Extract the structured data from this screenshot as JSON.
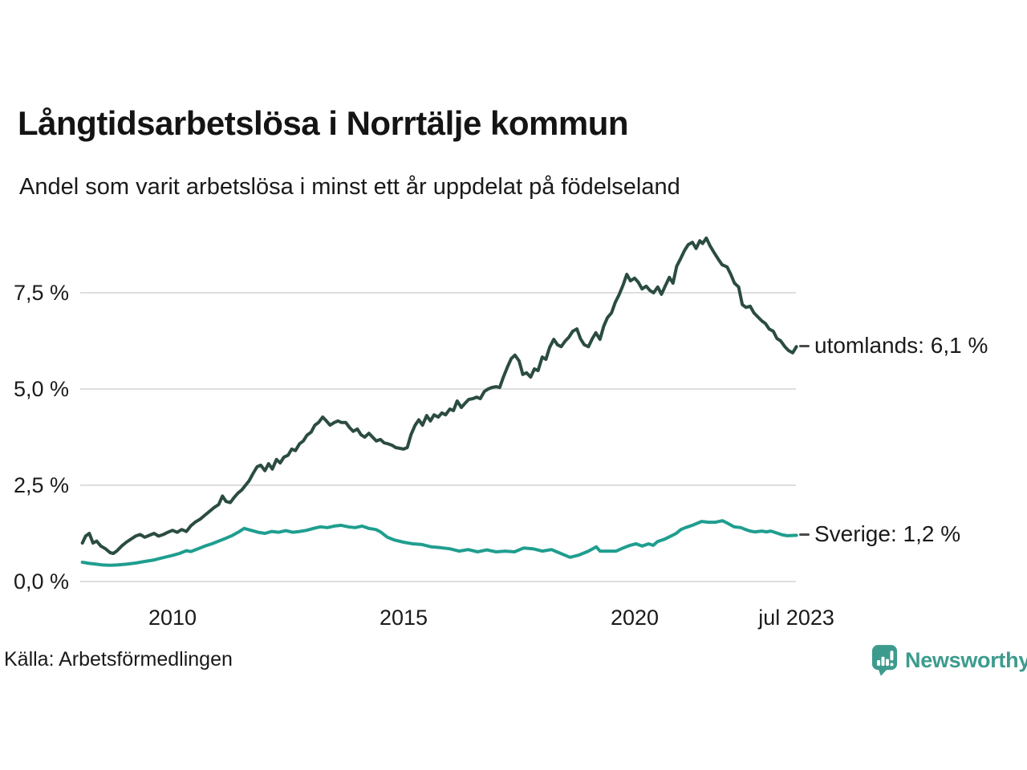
{
  "title": "Långtidsarbetslösa i Norrtälje kommun",
  "subtitle": "Andel som varit arbetslösa i minst ett år uppdelat på födelseland",
  "source": "Källa: Arbetsförmedlingen",
  "branding": {
    "name": "Newsworthy",
    "icon": "newsworthy-bars-icon",
    "color": "#3d9b8e"
  },
  "colors": {
    "utomlands": "#2b4c41",
    "sverige": "#1f9e8f",
    "grid": "#dedede",
    "text": "#1a1a1a",
    "leader": "#4a4a4a",
    "background": "#ffffff"
  },
  "axes": {
    "y_ticks": [
      {
        "value": 7.5,
        "label": "7,5 %"
      },
      {
        "value": 5.0,
        "label": "5,0 %"
      },
      {
        "value": 2.5,
        "label": "2,5 %"
      },
      {
        "value": 0.0,
        "label": "0,0 %"
      }
    ],
    "x_ticks": [
      {
        "value": 2010,
        "label": "2010"
      },
      {
        "value": 2015,
        "label": "2015"
      },
      {
        "value": 2020,
        "label": "2020"
      },
      {
        "value": 2023.5,
        "label": "jul 2023"
      }
    ],
    "x_domain": [
      2008.05,
      2023.5
    ],
    "y_domain": [
      0,
      9.3
    ],
    "grid": "horizontal-only",
    "unit": "%"
  },
  "chart_data": {
    "type": "line",
    "title": "Långtidsarbetslösa i Norrtälje kommun",
    "subtitle": "Andel som varit arbetslösa i minst ett år uppdelat på födelseland",
    "xlabel": "",
    "ylabel": "",
    "legend_position": "right-end-labels",
    "series": [
      {
        "name": "utomlands",
        "label": "utomlands: 6,1 %",
        "end_value": "6,1 %",
        "color": "#2b4c41",
        "points": [
          [
            2008.05,
            1.0
          ],
          [
            2008.12,
            1.18
          ],
          [
            2008.2,
            1.25
          ],
          [
            2008.28,
            1.0
          ],
          [
            2008.36,
            1.05
          ],
          [
            2008.45,
            0.92
          ],
          [
            2008.55,
            0.85
          ],
          [
            2008.65,
            0.75
          ],
          [
            2008.72,
            0.73
          ],
          [
            2008.8,
            0.8
          ],
          [
            2008.9,
            0.92
          ],
          [
            2009.0,
            1.02
          ],
          [
            2009.1,
            1.1
          ],
          [
            2009.2,
            1.18
          ],
          [
            2009.3,
            1.22
          ],
          [
            2009.4,
            1.15
          ],
          [
            2009.5,
            1.2
          ],
          [
            2009.6,
            1.25
          ],
          [
            2009.7,
            1.18
          ],
          [
            2009.8,
            1.22
          ],
          [
            2009.9,
            1.28
          ],
          [
            2010.0,
            1.33
          ],
          [
            2010.1,
            1.28
          ],
          [
            2010.2,
            1.35
          ],
          [
            2010.3,
            1.3
          ],
          [
            2010.4,
            1.45
          ],
          [
            2010.5,
            1.55
          ],
          [
            2010.6,
            1.62
          ],
          [
            2010.7,
            1.72
          ],
          [
            2010.8,
            1.82
          ],
          [
            2010.9,
            1.92
          ],
          [
            2011.0,
            2.0
          ],
          [
            2011.08,
            2.22
          ],
          [
            2011.16,
            2.08
          ],
          [
            2011.25,
            2.05
          ],
          [
            2011.33,
            2.18
          ],
          [
            2011.42,
            2.3
          ],
          [
            2011.5,
            2.38
          ],
          [
            2011.58,
            2.5
          ],
          [
            2011.66,
            2.62
          ],
          [
            2011.75,
            2.82
          ],
          [
            2011.83,
            2.98
          ],
          [
            2011.91,
            3.02
          ],
          [
            2012.0,
            2.88
          ],
          [
            2012.08,
            3.06
          ],
          [
            2012.16,
            2.92
          ],
          [
            2012.25,
            3.17
          ],
          [
            2012.33,
            3.08
          ],
          [
            2012.41,
            3.23
          ],
          [
            2012.5,
            3.28
          ],
          [
            2012.58,
            3.44
          ],
          [
            2012.66,
            3.4
          ],
          [
            2012.75,
            3.58
          ],
          [
            2012.83,
            3.65
          ],
          [
            2012.91,
            3.8
          ],
          [
            2013.0,
            3.88
          ],
          [
            2013.08,
            4.06
          ],
          [
            2013.16,
            4.13
          ],
          [
            2013.25,
            4.27
          ],
          [
            2013.33,
            4.17
          ],
          [
            2013.41,
            4.06
          ],
          [
            2013.5,
            4.13
          ],
          [
            2013.58,
            4.17
          ],
          [
            2013.66,
            4.13
          ],
          [
            2013.75,
            4.13
          ],
          [
            2013.83,
            4.0
          ],
          [
            2013.91,
            3.9
          ],
          [
            2014.0,
            3.96
          ],
          [
            2014.08,
            3.81
          ],
          [
            2014.16,
            3.75
          ],
          [
            2014.25,
            3.85
          ],
          [
            2014.33,
            3.75
          ],
          [
            2014.41,
            3.65
          ],
          [
            2014.5,
            3.69
          ],
          [
            2014.58,
            3.6
          ],
          [
            2014.66,
            3.58
          ],
          [
            2014.75,
            3.54
          ],
          [
            2014.83,
            3.48
          ],
          [
            2014.91,
            3.46
          ],
          [
            2015.0,
            3.44
          ],
          [
            2015.08,
            3.48
          ],
          [
            2015.16,
            3.81
          ],
          [
            2015.25,
            4.06
          ],
          [
            2015.33,
            4.2
          ],
          [
            2015.41,
            4.06
          ],
          [
            2015.5,
            4.31
          ],
          [
            2015.58,
            4.17
          ],
          [
            2015.66,
            4.33
          ],
          [
            2015.75,
            4.27
          ],
          [
            2015.83,
            4.38
          ],
          [
            2015.91,
            4.33
          ],
          [
            2016.0,
            4.48
          ],
          [
            2016.08,
            4.44
          ],
          [
            2016.16,
            4.69
          ],
          [
            2016.25,
            4.52
          ],
          [
            2016.33,
            4.63
          ],
          [
            2016.41,
            4.73
          ],
          [
            2016.5,
            4.75
          ],
          [
            2016.58,
            4.79
          ],
          [
            2016.66,
            4.75
          ],
          [
            2016.75,
            4.94
          ],
          [
            2016.83,
            5.0
          ],
          [
            2016.91,
            5.04
          ],
          [
            2017.0,
            5.06
          ],
          [
            2017.08,
            5.04
          ],
          [
            2017.16,
            5.31
          ],
          [
            2017.25,
            5.58
          ],
          [
            2017.33,
            5.79
          ],
          [
            2017.41,
            5.88
          ],
          [
            2017.5,
            5.73
          ],
          [
            2017.58,
            5.38
          ],
          [
            2017.66,
            5.42
          ],
          [
            2017.75,
            5.31
          ],
          [
            2017.83,
            5.52
          ],
          [
            2017.91,
            5.48
          ],
          [
            2018.0,
            5.83
          ],
          [
            2018.08,
            5.77
          ],
          [
            2018.16,
            6.08
          ],
          [
            2018.25,
            6.29
          ],
          [
            2018.33,
            6.15
          ],
          [
            2018.41,
            6.1
          ],
          [
            2018.5,
            6.25
          ],
          [
            2018.58,
            6.35
          ],
          [
            2018.66,
            6.5
          ],
          [
            2018.75,
            6.56
          ],
          [
            2018.83,
            6.3
          ],
          [
            2018.91,
            6.15
          ],
          [
            2019.0,
            6.1
          ],
          [
            2019.08,
            6.3
          ],
          [
            2019.16,
            6.46
          ],
          [
            2019.25,
            6.29
          ],
          [
            2019.33,
            6.63
          ],
          [
            2019.41,
            6.85
          ],
          [
            2019.5,
            6.98
          ],
          [
            2019.58,
            7.25
          ],
          [
            2019.66,
            7.44
          ],
          [
            2019.75,
            7.7
          ],
          [
            2019.83,
            7.98
          ],
          [
            2019.91,
            7.81
          ],
          [
            2020.0,
            7.88
          ],
          [
            2020.08,
            7.77
          ],
          [
            2020.16,
            7.6
          ],
          [
            2020.25,
            7.67
          ],
          [
            2020.33,
            7.56
          ],
          [
            2020.41,
            7.5
          ],
          [
            2020.5,
            7.65
          ],
          [
            2020.58,
            7.46
          ],
          [
            2020.66,
            7.67
          ],
          [
            2020.75,
            7.9
          ],
          [
            2020.83,
            7.75
          ],
          [
            2020.91,
            8.19
          ],
          [
            2021.0,
            8.4
          ],
          [
            2021.08,
            8.6
          ],
          [
            2021.16,
            8.75
          ],
          [
            2021.25,
            8.81
          ],
          [
            2021.33,
            8.65
          ],
          [
            2021.41,
            8.85
          ],
          [
            2021.47,
            8.78
          ],
          [
            2021.55,
            8.92
          ],
          [
            2021.63,
            8.72
          ],
          [
            2021.72,
            8.54
          ],
          [
            2021.81,
            8.37
          ],
          [
            2021.89,
            8.23
          ],
          [
            2022.0,
            8.17
          ],
          [
            2022.08,
            7.98
          ],
          [
            2022.16,
            7.75
          ],
          [
            2022.25,
            7.65
          ],
          [
            2022.33,
            7.19
          ],
          [
            2022.41,
            7.12
          ],
          [
            2022.5,
            7.15
          ],
          [
            2022.58,
            6.98
          ],
          [
            2022.66,
            6.88
          ],
          [
            2022.75,
            6.77
          ],
          [
            2022.83,
            6.7
          ],
          [
            2022.91,
            6.56
          ],
          [
            2023.0,
            6.5
          ],
          [
            2023.08,
            6.31
          ],
          [
            2023.16,
            6.25
          ],
          [
            2023.25,
            6.1
          ],
          [
            2023.33,
            6.0
          ],
          [
            2023.42,
            5.94
          ],
          [
            2023.5,
            6.1
          ]
        ]
      },
      {
        "name": "Sverige",
        "label": "Sverige: 1,2 %",
        "end_value": "1,2 %",
        "color": "#1f9e8f",
        "points": [
          [
            2008.05,
            0.5
          ],
          [
            2008.2,
            0.47
          ],
          [
            2008.35,
            0.45
          ],
          [
            2008.5,
            0.43
          ],
          [
            2008.65,
            0.42
          ],
          [
            2008.8,
            0.43
          ],
          [
            2009.0,
            0.45
          ],
          [
            2009.2,
            0.48
          ],
          [
            2009.4,
            0.52
          ],
          [
            2009.6,
            0.56
          ],
          [
            2009.8,
            0.62
          ],
          [
            2010.0,
            0.68
          ],
          [
            2010.15,
            0.73
          ],
          [
            2010.3,
            0.8
          ],
          [
            2010.4,
            0.78
          ],
          [
            2010.55,
            0.85
          ],
          [
            2010.7,
            0.92
          ],
          [
            2010.85,
            0.98
          ],
          [
            2011.0,
            1.05
          ],
          [
            2011.15,
            1.12
          ],
          [
            2011.3,
            1.2
          ],
          [
            2011.45,
            1.3
          ],
          [
            2011.55,
            1.38
          ],
          [
            2011.7,
            1.33
          ],
          [
            2011.85,
            1.28
          ],
          [
            2012.0,
            1.25
          ],
          [
            2012.15,
            1.3
          ],
          [
            2012.3,
            1.28
          ],
          [
            2012.45,
            1.32
          ],
          [
            2012.6,
            1.28
          ],
          [
            2012.75,
            1.3
          ],
          [
            2012.9,
            1.33
          ],
          [
            2013.05,
            1.38
          ],
          [
            2013.2,
            1.42
          ],
          [
            2013.35,
            1.4
          ],
          [
            2013.5,
            1.44
          ],
          [
            2013.65,
            1.46
          ],
          [
            2013.8,
            1.42
          ],
          [
            2013.95,
            1.4
          ],
          [
            2014.1,
            1.44
          ],
          [
            2014.25,
            1.38
          ],
          [
            2014.4,
            1.35
          ],
          [
            2014.5,
            1.29
          ],
          [
            2014.65,
            1.15
          ],
          [
            2014.8,
            1.08
          ],
          [
            2015.0,
            1.02
          ],
          [
            2015.2,
            0.98
          ],
          [
            2015.4,
            0.96
          ],
          [
            2015.6,
            0.9
          ],
          [
            2015.8,
            0.88
          ],
          [
            2016.0,
            0.85
          ],
          [
            2016.2,
            0.79
          ],
          [
            2016.4,
            0.83
          ],
          [
            2016.6,
            0.77
          ],
          [
            2016.8,
            0.82
          ],
          [
            2017.0,
            0.77
          ],
          [
            2017.2,
            0.79
          ],
          [
            2017.4,
            0.77
          ],
          [
            2017.6,
            0.87
          ],
          [
            2017.8,
            0.85
          ],
          [
            2018.0,
            0.79
          ],
          [
            2018.2,
            0.83
          ],
          [
            2018.4,
            0.73
          ],
          [
            2018.6,
            0.63
          ],
          [
            2018.8,
            0.69
          ],
          [
            2019.0,
            0.79
          ],
          [
            2019.17,
            0.9
          ],
          [
            2019.25,
            0.79
          ],
          [
            2019.4,
            0.79
          ],
          [
            2019.6,
            0.79
          ],
          [
            2019.75,
            0.87
          ],
          [
            2019.9,
            0.94
          ],
          [
            2020.03,
            0.98
          ],
          [
            2020.16,
            0.92
          ],
          [
            2020.3,
            0.98
          ],
          [
            2020.4,
            0.94
          ],
          [
            2020.5,
            1.04
          ],
          [
            2020.65,
            1.1
          ],
          [
            2020.8,
            1.19
          ],
          [
            2020.9,
            1.25
          ],
          [
            2021.0,
            1.35
          ],
          [
            2021.1,
            1.4
          ],
          [
            2021.25,
            1.46
          ],
          [
            2021.45,
            1.56
          ],
          [
            2021.6,
            1.54
          ],
          [
            2021.75,
            1.54
          ],
          [
            2021.9,
            1.58
          ],
          [
            2022.0,
            1.52
          ],
          [
            2022.15,
            1.42
          ],
          [
            2022.3,
            1.4
          ],
          [
            2022.4,
            1.35
          ],
          [
            2022.5,
            1.31
          ],
          [
            2022.6,
            1.29
          ],
          [
            2022.75,
            1.31
          ],
          [
            2022.85,
            1.29
          ],
          [
            2022.95,
            1.31
          ],
          [
            2023.1,
            1.25
          ],
          [
            2023.2,
            1.21
          ],
          [
            2023.3,
            1.19
          ],
          [
            2023.5,
            1.2
          ]
        ]
      }
    ]
  }
}
